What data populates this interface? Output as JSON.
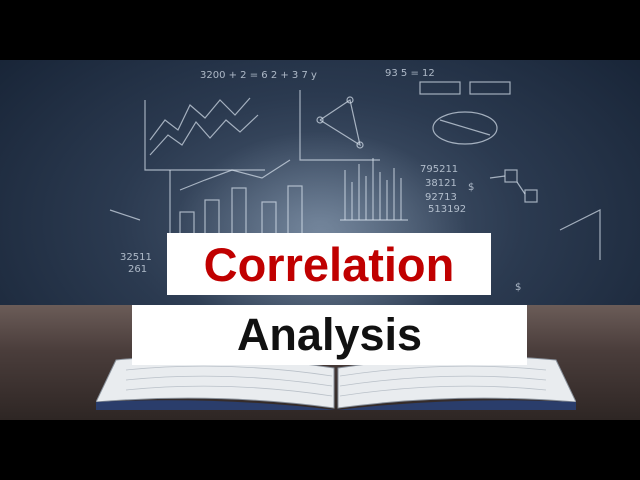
{
  "title": {
    "line1": "Correlation",
    "line2": "Analysis"
  },
  "colors": {
    "line1_text": "#c00000",
    "line2_text": "#111111",
    "box_background": "#ffffff",
    "chalkboard": "#2b3a50",
    "letterbox": "#000000"
  },
  "illustration": {
    "board_formulas": [
      "3200 + 2 = 6 2 + 3 7 y",
      "93 5 = 12",
      "795211",
      "38121",
      "92713",
      "513192",
      "32511",
      "261"
    ]
  }
}
